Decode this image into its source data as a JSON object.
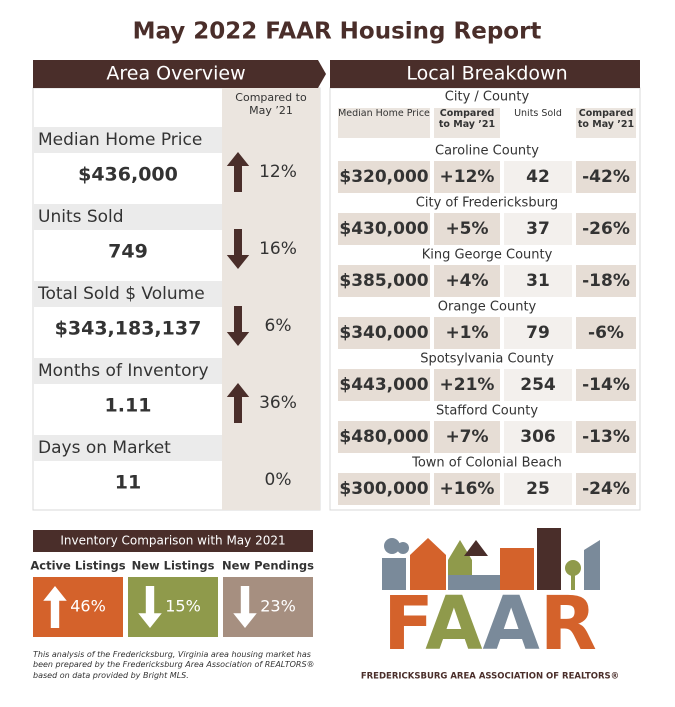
{
  "title": "May 2022 FAAR Housing Report",
  "area_overview": {
    "heading": "Area Overview",
    "compared_header": "Compared to May ’21",
    "rows": [
      {
        "label": "Median Home Price",
        "value": "$436,000",
        "direction": "up",
        "change": "12%"
      },
      {
        "label": "Units Sold",
        "value": "749",
        "direction": "down",
        "change": "16%"
      },
      {
        "label": "Total Sold $ Volume",
        "value": "$343,183,137",
        "direction": "down",
        "change": "6%"
      },
      {
        "label": "Months of Inventory",
        "value": "1.11",
        "direction": "up",
        "change": "36%"
      },
      {
        "label": "Days on Market",
        "value": "11",
        "direction": "none",
        "change": "0%"
      }
    ]
  },
  "local_breakdown": {
    "heading": "Local Breakdown",
    "group_header": "City / County",
    "columns": [
      "Median Home Price",
      "Compared to May ’21",
      "Units Sold",
      "Compared to May ’21"
    ],
    "rows": [
      {
        "name": "Caroline County",
        "cells": [
          "$320,000",
          "+12%",
          "42",
          "-42%"
        ]
      },
      {
        "name": "City of Fredericksburg",
        "cells": [
          "$430,000",
          "+5%",
          "37",
          "-26%"
        ]
      },
      {
        "name": "King George County",
        "cells": [
          "$385,000",
          "+4%",
          "31",
          "-18%"
        ]
      },
      {
        "name": "Orange County",
        "cells": [
          "$340,000",
          "+1%",
          "79",
          "-6%"
        ]
      },
      {
        "name": "Spotsylvania County",
        "cells": [
          "$443,000",
          "+21%",
          "254",
          "-14%"
        ]
      },
      {
        "name": "Stafford County",
        "cells": [
          "$480,000",
          "+7%",
          "306",
          "-13%"
        ]
      },
      {
        "name": "Town of Colonial Beach",
        "cells": [
          "$300,000",
          "+16%",
          "25",
          "-24%"
        ]
      }
    ]
  },
  "inventory": {
    "heading": "Inventory Comparison with May 2021",
    "items": [
      {
        "label": "Active Listings",
        "direction": "up",
        "change": "46%",
        "color": "#d4622b"
      },
      {
        "label": "New Listings",
        "direction": "down",
        "change": "15%",
        "color": "#8f9a4b"
      },
      {
        "label": "New Pendings",
        "direction": "down",
        "change": "23%",
        "color": "#a68f80"
      }
    ]
  },
  "footnote": "This analysis of the Fredericksburg, Virginia area housing market has been prepared by the Fredericksburg Area Association of REALTORS® based on data provided by Bright MLS.",
  "logo": {
    "text": "FAAR",
    "subtitle": "FREDERICKSBURG AREA ASSOCIATION OF REALTORS®"
  }
}
